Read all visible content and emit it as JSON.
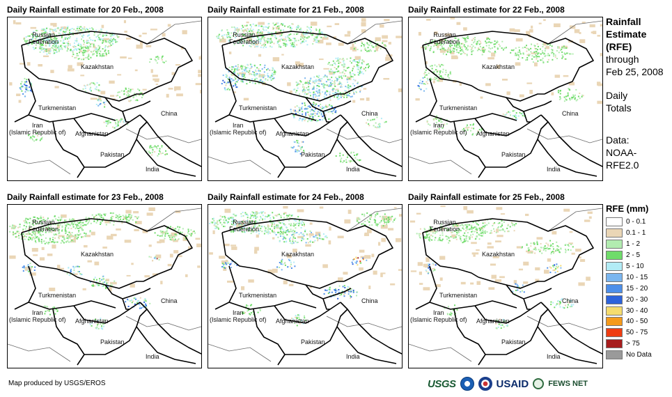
{
  "panels": [
    {
      "title": "Daily Rainfall estimate for 20 Feb., 2008"
    },
    {
      "title": "Daily Rainfall estimate for 21 Feb., 2008"
    },
    {
      "title": "Daily Rainfall estimate for 22 Feb., 2008"
    },
    {
      "title": "Daily Rainfall estimate for 23 Feb., 2008"
    },
    {
      "title": "Daily Rainfall estimate for 24 Feb., 2008"
    },
    {
      "title": "Daily Rainfall estimate for 25 Feb., 2008"
    }
  ],
  "map_labels": {
    "russia_1": "Russian",
    "russia_2": "Federation",
    "kazakhstan": "Kazakhstan",
    "turkmenistan": "Turkmenistan",
    "iran_1": "Iran",
    "iran_2": "(Islamic Republic of)",
    "afghanistan": "Afghanistan",
    "pakistan": "Pakistan",
    "china": "China",
    "india": "India"
  },
  "side_info": {
    "title_1": "Rainfall",
    "title_2": "Estimate",
    "title_3": "(RFE)",
    "through": "through",
    "date": "Feb 25, 2008",
    "daily": "Daily",
    "totals": "Totals",
    "data_label": "Data:",
    "source_1": "NOAA-",
    "source_2": "RFE2.0"
  },
  "legend": {
    "title": "RFE (mm)",
    "items": [
      {
        "label": "0 - 0.1",
        "color": "#ffffff"
      },
      {
        "label": "0.1 - 1",
        "color": "#ead6b6"
      },
      {
        "label": "1 - 2",
        "color": "#b2ecb0"
      },
      {
        "label": "2 - 5",
        "color": "#6fdc6a"
      },
      {
        "label": "5 - 10",
        "color": "#b2ecf6"
      },
      {
        "label": "10 - 15",
        "color": "#7ab6ef"
      },
      {
        "label": "15 - 20",
        "color": "#4d8fe9"
      },
      {
        "label": "20 - 30",
        "color": "#2d63db"
      },
      {
        "label": "30 - 40",
        "color": "#f5dc6e"
      },
      {
        "label": "40 - 50",
        "color": "#f59a1b"
      },
      {
        "label": "50 - 75",
        "color": "#ef3d12"
      },
      {
        "label": "> 75",
        "color": "#a71d1d"
      },
      {
        "label": "No Data",
        "color": "#9a9a9a"
      }
    ]
  },
  "footer": {
    "credit": "Map produced by USGS/EROS",
    "logos": [
      "USGS",
      "NOAA",
      "NWS",
      "USAID",
      "FEWS NET"
    ]
  }
}
